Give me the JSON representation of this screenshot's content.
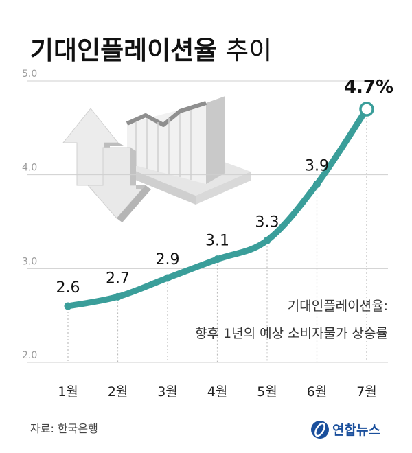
{
  "header": {
    "title_bold": "기대인플레이션율",
    "title_rest": " 추이"
  },
  "chart_data": {
    "type": "line",
    "categories": [
      "1월",
      "2월",
      "3월",
      "4월",
      "5월",
      "6월",
      "7월"
    ],
    "values": [
      2.6,
      2.7,
      2.9,
      3.1,
      3.3,
      3.9,
      4.7
    ],
    "data_labels": [
      "2.6",
      "2.7",
      "2.9",
      "3.1",
      "3.3",
      "3.9",
      "4.7%"
    ],
    "yticks": [
      "2.0",
      "3.0",
      "4.0",
      "5.0"
    ],
    "ylim": [
      2.0,
      5.0
    ],
    "grid": "dotted-vertical",
    "line_color": "#3a9e9a",
    "annotation": [
      "기대인플레이션율:",
      "향후 1년의 예상 소비자물가 상승률"
    ]
  },
  "footer": {
    "source": "자료: 한국은행",
    "logo": "연합뉴스",
    "logo_color": "#1a4f9c"
  }
}
